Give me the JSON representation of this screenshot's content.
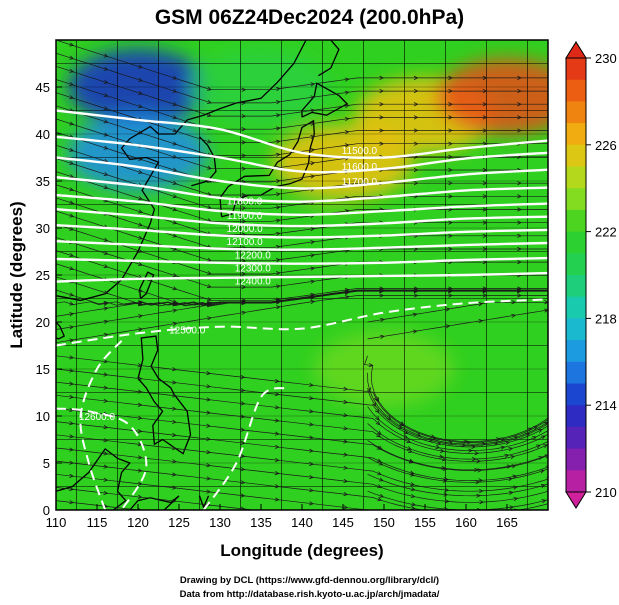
{
  "title": "GSM 06Z24Dec2024 (200.0hPa)",
  "credits": [
    "Drawing by DCL (https://www.gfd-dennou.org/library/dcl/)",
    "Data from http://database.rish.kyoto-u.ac.jp/arch/jmadata/"
  ],
  "chart_data": {
    "type": "heatmap",
    "variable": "temperature (shaded), geopotential height (contours), wind (streamlines)",
    "xlabel": "Longitude (degrees)",
    "ylabel": "Latitude (degrees)",
    "xlim": [
      110,
      170
    ],
    "ylim": [
      0,
      50
    ],
    "xticks": [
      110,
      115,
      120,
      125,
      130,
      135,
      140,
      145,
      150,
      155,
      160,
      165
    ],
    "yticks": [
      0,
      5,
      10,
      15,
      20,
      25,
      30,
      35,
      40,
      45
    ],
    "grid": true,
    "colorbar": {
      "range": [
        210,
        230
      ],
      "ticks": [
        210,
        214,
        218,
        222,
        226,
        230
      ],
      "colors": [
        "#d0209c",
        "#6a1fb4",
        "#1a2fc8",
        "#1e8ce8",
        "#18c8c8",
        "#20d060",
        "#30d020",
        "#a0e020",
        "#f0c010",
        "#f07010",
        "#e02818"
      ]
    },
    "temperature_samples": [
      {
        "lon": 120,
        "lat": 45,
        "value": 214
      },
      {
        "lon": 120,
        "lat": 38,
        "value": 216
      },
      {
        "lon": 135,
        "lat": 45,
        "value": 221
      },
      {
        "lon": 155,
        "lat": 42,
        "value": 226
      },
      {
        "lon": 165,
        "lat": 44,
        "value": 229
      },
      {
        "lon": 145,
        "lat": 37,
        "value": 226
      },
      {
        "lon": 140,
        "lat": 28,
        "value": 222
      },
      {
        "lon": 150,
        "lat": 15,
        "value": 223
      },
      {
        "lon": 115,
        "lat": 10,
        "value": 222
      }
    ],
    "contours": [
      {
        "label": "11500",
        "points": [
          [
            110,
            42.5
          ],
          [
            120,
            41.5
          ],
          [
            130,
            40.5
          ],
          [
            140,
            38.0
          ],
          [
            150,
            37.5
          ],
          [
            160,
            38.5
          ],
          [
            170,
            39.3
          ]
        ]
      },
      {
        "label": "11600",
        "points": [
          [
            110,
            39.7
          ],
          [
            120,
            38.8
          ],
          [
            130,
            37.5
          ],
          [
            140,
            36.0
          ],
          [
            150,
            36.3
          ],
          [
            160,
            37.4
          ],
          [
            170,
            38.0
          ]
        ]
      },
      {
        "label": "11700",
        "points": [
          [
            110,
            37.5
          ],
          [
            120,
            36.5
          ],
          [
            130,
            35.0
          ],
          [
            140,
            34.2
          ],
          [
            150,
            34.8
          ],
          [
            160,
            35.7
          ],
          [
            170,
            36.2
          ]
        ]
      },
      {
        "label": "11800",
        "points": [
          [
            110,
            35.4
          ],
          [
            120,
            34.5
          ],
          [
            130,
            33.2
          ],
          [
            140,
            32.8
          ],
          [
            150,
            33.3
          ],
          [
            160,
            34.0
          ],
          [
            170,
            34.3
          ]
        ]
      },
      {
        "label": "11900",
        "points": [
          [
            110,
            33.5
          ],
          [
            120,
            32.8
          ],
          [
            130,
            31.8
          ],
          [
            140,
            31.4
          ],
          [
            150,
            31.8
          ],
          [
            160,
            32.3
          ],
          [
            170,
            32.6
          ]
        ]
      },
      {
        "label": "12000",
        "points": [
          [
            110,
            32.0
          ],
          [
            120,
            31.3
          ],
          [
            130,
            30.5
          ],
          [
            140,
            30.2
          ],
          [
            150,
            30.5
          ],
          [
            160,
            31.0
          ],
          [
            170,
            31.2
          ]
        ]
      },
      {
        "label": "12100",
        "points": [
          [
            110,
            30.3
          ],
          [
            120,
            29.8
          ],
          [
            130,
            29.2
          ],
          [
            140,
            29.0
          ],
          [
            150,
            29.2
          ],
          [
            160,
            29.6
          ],
          [
            170,
            29.8
          ]
        ]
      },
      {
        "label": "12200",
        "points": [
          [
            110,
            28.6
          ],
          [
            120,
            28.2
          ],
          [
            130,
            27.8
          ],
          [
            140,
            27.7
          ],
          [
            150,
            27.9
          ],
          [
            160,
            28.2
          ],
          [
            170,
            28.4
          ]
        ]
      },
      {
        "label": "12300",
        "points": [
          [
            110,
            26.7
          ],
          [
            120,
            26.5
          ],
          [
            130,
            26.3
          ],
          [
            140,
            26.2
          ],
          [
            150,
            26.3
          ],
          [
            160,
            26.6
          ],
          [
            170,
            26.8
          ]
        ]
      },
      {
        "label": "12400",
        "points": [
          [
            110,
            24.3
          ],
          [
            120,
            24.6
          ],
          [
            130,
            24.7
          ],
          [
            140,
            24.8
          ],
          [
            150,
            24.9
          ],
          [
            160,
            25.0
          ],
          [
            170,
            25.2
          ]
        ]
      },
      {
        "label": "12500",
        "points": [
          [
            110,
            17.5
          ],
          [
            120,
            18.8
          ],
          [
            130,
            19.5
          ],
          [
            140,
            19.3
          ],
          [
            150,
            21.0
          ],
          [
            160,
            22.0
          ],
          [
            170,
            22.4
          ]
        ]
      },
      {
        "label": "12500",
        "points": [
          [
            116,
            0
          ],
          [
            114,
            5
          ],
          [
            113,
            10
          ],
          [
            115,
            15
          ],
          [
            118,
            18
          ]
        ]
      },
      {
        "label": "12600",
        "points": [
          [
            110,
            10.8
          ],
          [
            114,
            10.5
          ],
          [
            119,
            9.0
          ],
          [
            121,
            4.5
          ],
          [
            118,
            0
          ]
        ]
      },
      {
        "label": "12600",
        "points": [
          [
            128,
            0
          ],
          [
            132,
            5
          ],
          [
            135,
            12
          ],
          [
            138,
            13
          ]
        ]
      }
    ],
    "contour_labels": [
      {
        "text": "11500.0",
        "lon": 147,
        "lat": 38.3
      },
      {
        "text": "11600.0",
        "lon": 147,
        "lat": 36.6
      },
      {
        "text": "11700.0",
        "lon": 147,
        "lat": 35.0
      },
      {
        "text": "11800.0",
        "lon": 133,
        "lat": 32.9
      },
      {
        "text": "11900.0",
        "lon": 133,
        "lat": 31.4
      },
      {
        "text": "12000.0",
        "lon": 133,
        "lat": 30.0
      },
      {
        "text": "12100.0",
        "lon": 133,
        "lat": 28.6
      },
      {
        "text": "12200.0",
        "lon": 134,
        "lat": 27.2
      },
      {
        "text": "12300.0",
        "lon": 134,
        "lat": 25.8
      },
      {
        "text": "12400.0",
        "lon": 134,
        "lat": 24.4
      },
      {
        "text": "12500.0",
        "lon": 126,
        "lat": 19.2
      },
      {
        "text": "12600.0",
        "lon": 115,
        "lat": 10.0
      }
    ]
  }
}
